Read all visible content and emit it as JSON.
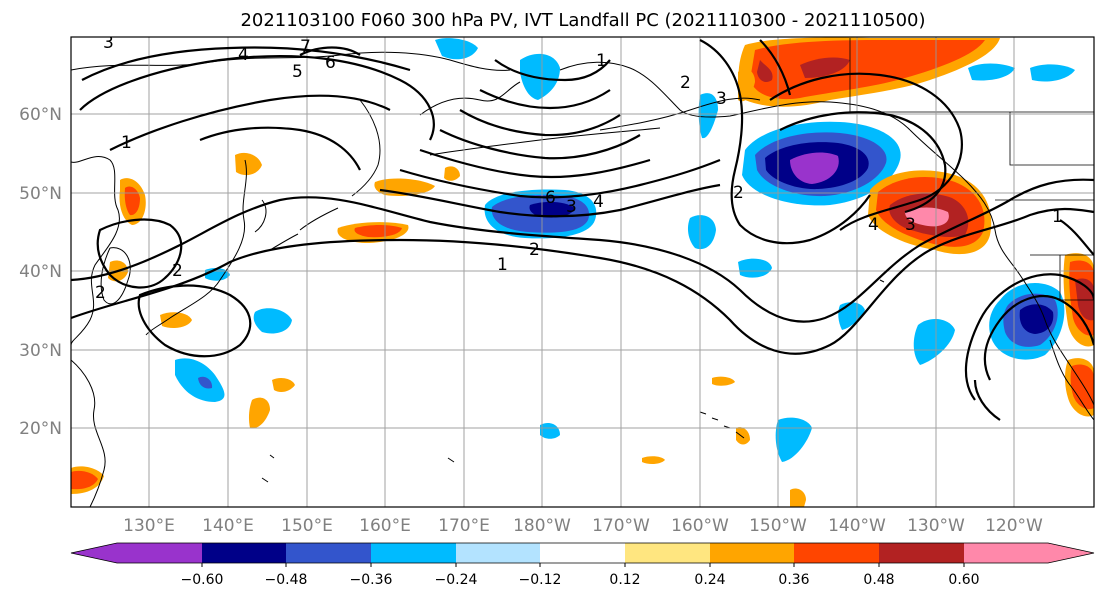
{
  "title": "2021103100 F060 300 hPa PV, IVT Landfall PC (2021110300 - 2021110500)",
  "lat_labels": [
    "60°N",
    "50°N",
    "40°N",
    "30°N",
    "20°N"
  ],
  "lon_labels": [
    "130°E",
    "140°E",
    "150°E",
    "160°E",
    "170°E",
    "180°W",
    "170°W",
    "160°W",
    "150°W",
    "140°W",
    "130°W",
    "120°W"
  ],
  "colorbar": {
    "colors": [
      "#9933cc",
      "#000088",
      "#3355cc",
      "#00bbff",
      "#b3e3ff",
      "#ffffff",
      "#ffe680",
      "#ffa500",
      "#ff4500",
      "#b22222",
      "#ff88aa"
    ],
    "tick_labels": [
      "−0.60",
      "−0.48",
      "−0.36",
      "−0.24",
      "−0.12",
      "0.12",
      "0.24",
      "0.36",
      "0.48",
      "0.60"
    ]
  },
  "pv_contour_labels": [
    "1",
    "2",
    "3",
    "4",
    "5",
    "6",
    "7",
    "6",
    "4",
    "3",
    "2",
    "1",
    "2",
    "1",
    "2",
    "3",
    "4",
    "3",
    "2",
    "1"
  ],
  "colors": {
    "land": "#000000",
    "grid": "#999999",
    "pv_contour": "#000000"
  }
}
